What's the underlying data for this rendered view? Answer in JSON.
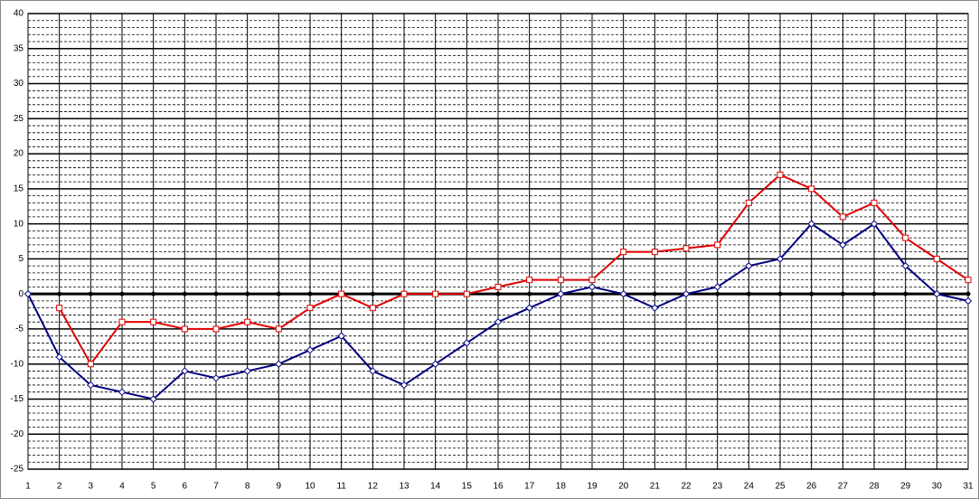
{
  "chart_data": {
    "type": "line",
    "x": [
      1,
      2,
      3,
      4,
      5,
      6,
      7,
      8,
      9,
      10,
      11,
      12,
      13,
      14,
      15,
      16,
      17,
      18,
      19,
      20,
      21,
      22,
      23,
      24,
      25,
      26,
      27,
      28,
      29,
      30,
      31
    ],
    "xlim": [
      1,
      31
    ],
    "xticks": [
      1,
      2,
      3,
      4,
      5,
      6,
      7,
      8,
      9,
      10,
      11,
      12,
      13,
      14,
      15,
      16,
      17,
      18,
      19,
      20,
      21,
      22,
      23,
      24,
      25,
      26,
      27,
      28,
      29,
      30,
      31
    ],
    "ylim": [
      -25,
      40
    ],
    "yticks": [
      -25,
      -20,
      -15,
      -10,
      -5,
      0,
      5,
      10,
      15,
      20,
      25,
      30,
      35,
      40
    ],
    "yminor_step": 1,
    "grid": true,
    "series": [
      {
        "color": "#000000",
        "marker": "dot",
        "values": [
          0,
          0,
          0,
          0,
          0,
          0,
          0,
          0,
          0,
          0,
          0,
          0,
          0,
          0,
          0,
          0,
          0,
          0,
          0,
          0,
          0,
          0,
          0,
          0,
          0,
          0,
          0,
          0,
          0,
          0,
          0
        ]
      },
      {
        "color": "#e00000",
        "marker": "square",
        "values": [
          null,
          -2,
          -10,
          -4,
          -4,
          -5,
          -5,
          -4,
          -5,
          -2,
          0,
          -2,
          0,
          0,
          0,
          1,
          2,
          2,
          2,
          6,
          6,
          6.5,
          7,
          13,
          17,
          15,
          11,
          13,
          8,
          5,
          2
        ]
      },
      {
        "color": "#000080",
        "marker": "diamond",
        "values": [
          0,
          -9,
          -13,
          -14,
          -15,
          -11,
          -12,
          -11,
          -10,
          -8,
          -6,
          -11,
          -13,
          -10,
          -7,
          -4,
          -2,
          0,
          1,
          0,
          -2,
          0,
          1,
          4,
          5,
          10,
          7,
          10,
          4,
          0,
          -1
        ]
      }
    ]
  }
}
